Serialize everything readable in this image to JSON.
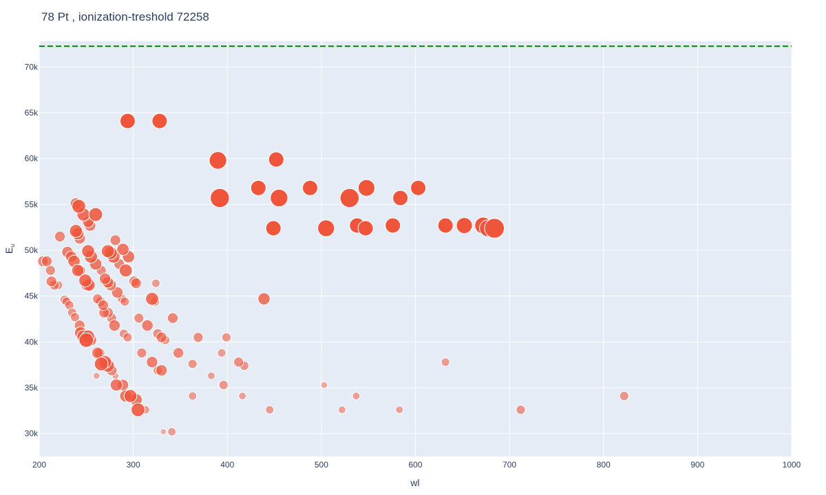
{
  "chart_data": {
    "type": "scatter",
    "title": "78 Pt , ionization-treshold 72258",
    "xlabel": "wl",
    "ylabel": "E",
    "ylabel_sub": "u",
    "xlim": [
      200,
      1000
    ],
    "ylim": [
      27500,
      72800
    ],
    "x_ticks": [
      200,
      300,
      400,
      500,
      600,
      700,
      800,
      900,
      1000
    ],
    "x_tick_labels": [
      "200",
      "300",
      "400",
      "500",
      "600",
      "700",
      "800",
      "900",
      "1000"
    ],
    "y_ticks": [
      30000,
      35000,
      40000,
      45000,
      50000,
      55000,
      60000,
      65000,
      70000
    ],
    "y_tick_labels": [
      "30k",
      "35k",
      "40k",
      "45k",
      "50k",
      "55k",
      "60k",
      "65k",
      "70k"
    ],
    "threshold": {
      "y": 72258,
      "color": "#008000",
      "style": "dashed"
    },
    "grid": true,
    "colors": {
      "background": "#e5ecf6",
      "grid": "#ffffff",
      "marker": "#ef553b",
      "marker_outline": "#ffffff",
      "text": "#2a3f5f"
    },
    "size_encoding": "marker size and opacity vary per point",
    "series": [
      {
        "points": [
          {
            "x": 294,
            "y": 64100,
            "s": 1.0
          },
          {
            "x": 328,
            "y": 64100,
            "s": 1.0
          },
          {
            "x": 390,
            "y": 59800,
            "s": 1.15
          },
          {
            "x": 452,
            "y": 59900,
            "s": 1.0
          },
          {
            "x": 392,
            "y": 55700,
            "s": 1.25
          },
          {
            "x": 433,
            "y": 56800,
            "s": 1.0
          },
          {
            "x": 455,
            "y": 55700,
            "s": 1.15
          },
          {
            "x": 488,
            "y": 56800,
            "s": 1.0
          },
          {
            "x": 530,
            "y": 55700,
            "s": 1.25
          },
          {
            "x": 548,
            "y": 56800,
            "s": 1.1
          },
          {
            "x": 584,
            "y": 55700,
            "s": 1.0
          },
          {
            "x": 603,
            "y": 56800,
            "s": 1.0
          },
          {
            "x": 449,
            "y": 52400,
            "s": 1.0
          },
          {
            "x": 505,
            "y": 52400,
            "s": 1.1
          },
          {
            "x": 538,
            "y": 52700,
            "s": 1.0
          },
          {
            "x": 547,
            "y": 52400,
            "s": 1.0
          },
          {
            "x": 576,
            "y": 52700,
            "s": 1.0
          },
          {
            "x": 632,
            "y": 52700,
            "s": 1.0
          },
          {
            "x": 652,
            "y": 52700,
            "s": 1.05
          },
          {
            "x": 672,
            "y": 52700,
            "s": 1.1
          },
          {
            "x": 677,
            "y": 52400,
            "s": 1.1
          },
          {
            "x": 684,
            "y": 52400,
            "s": 1.3
          },
          {
            "x": 439,
            "y": 44700,
            "s": 0.8
          },
          {
            "x": 632,
            "y": 37800,
            "s": 0.55
          },
          {
            "x": 503,
            "y": 35300,
            "s": 0.45
          },
          {
            "x": 537,
            "y": 34100,
            "s": 0.5
          },
          {
            "x": 522,
            "y": 32600,
            "s": 0.5
          },
          {
            "x": 583,
            "y": 32600,
            "s": 0.5
          },
          {
            "x": 712,
            "y": 32600,
            "s": 0.6
          },
          {
            "x": 822,
            "y": 34100,
            "s": 0.6
          },
          {
            "x": 445,
            "y": 32600,
            "s": 0.55
          },
          {
            "x": 416,
            "y": 34100,
            "s": 0.5
          },
          {
            "x": 396,
            "y": 35300,
            "s": 0.6
          },
          {
            "x": 383,
            "y": 36300,
            "s": 0.5
          },
          {
            "x": 412,
            "y": 37800,
            "s": 0.65
          },
          {
            "x": 418,
            "y": 37400,
            "s": 0.6
          },
          {
            "x": 394,
            "y": 38800,
            "s": 0.55
          },
          {
            "x": 399,
            "y": 40500,
            "s": 0.6
          },
          {
            "x": 369,
            "y": 40500,
            "s": 0.65
          },
          {
            "x": 363,
            "y": 37600,
            "s": 0.6
          },
          {
            "x": 363,
            "y": 34100,
            "s": 0.55
          },
          {
            "x": 348,
            "y": 38800,
            "s": 0.7
          },
          {
            "x": 342,
            "y": 42600,
            "s": 0.7
          },
          {
            "x": 341,
            "y": 30200,
            "s": 0.55
          },
          {
            "x": 332,
            "y": 30200,
            "s": 0.4
          },
          {
            "x": 330,
            "y": 36900,
            "s": 0.75
          },
          {
            "x": 320,
            "y": 37800,
            "s": 0.75
          },
          {
            "x": 326,
            "y": 36900,
            "s": 0.6
          },
          {
            "x": 313,
            "y": 32600,
            "s": 0.55
          },
          {
            "x": 305,
            "y": 32600,
            "s": 0.9
          },
          {
            "x": 303,
            "y": 33700,
            "s": 0.8
          },
          {
            "x": 297,
            "y": 34100,
            "s": 0.85
          },
          {
            "x": 292,
            "y": 34100,
            "s": 0.8
          },
          {
            "x": 289,
            "y": 35300,
            "s": 0.75
          },
          {
            "x": 282,
            "y": 35300,
            "s": 0.8
          },
          {
            "x": 281,
            "y": 36300,
            "s": 0.45
          },
          {
            "x": 277,
            "y": 36900,
            "s": 0.7
          },
          {
            "x": 273,
            "y": 37400,
            "s": 0.85
          },
          {
            "x": 270,
            "y": 37800,
            "s": 0.85
          },
          {
            "x": 266,
            "y": 37600,
            "s": 0.9
          },
          {
            "x": 264,
            "y": 38800,
            "s": 0.7
          },
          {
            "x": 262,
            "y": 38800,
            "s": 0.75
          },
          {
            "x": 309,
            "y": 38800,
            "s": 0.65
          },
          {
            "x": 326,
            "y": 40900,
            "s": 0.65
          },
          {
            "x": 330,
            "y": 40500,
            "s": 0.7
          },
          {
            "x": 334,
            "y": 40200,
            "s": 0.6
          },
          {
            "x": 315,
            "y": 41800,
            "s": 0.75
          },
          {
            "x": 306,
            "y": 42600,
            "s": 0.65
          },
          {
            "x": 280,
            "y": 41800,
            "s": 0.75
          },
          {
            "x": 290,
            "y": 40900,
            "s": 0.6
          },
          {
            "x": 294,
            "y": 40500,
            "s": 0.6
          },
          {
            "x": 277,
            "y": 42600,
            "s": 0.65
          },
          {
            "x": 273,
            "y": 43200,
            "s": 0.7
          },
          {
            "x": 269,
            "y": 43200,
            "s": 0.7
          },
          {
            "x": 268,
            "y": 44000,
            "s": 0.7
          },
          {
            "x": 265,
            "y": 44400,
            "s": 0.65
          },
          {
            "x": 262,
            "y": 44700,
            "s": 0.65
          },
          {
            "x": 320,
            "y": 44700,
            "s": 0.85
          },
          {
            "x": 323,
            "y": 44400,
            "s": 0.6
          },
          {
            "x": 288,
            "y": 44700,
            "s": 0.6
          },
          {
            "x": 291,
            "y": 44400,
            "s": 0.6
          },
          {
            "x": 283,
            "y": 45400,
            "s": 0.75
          },
          {
            "x": 276,
            "y": 46200,
            "s": 0.75
          },
          {
            "x": 273,
            "y": 46500,
            "s": 0.75
          },
          {
            "x": 270,
            "y": 46900,
            "s": 0.75
          },
          {
            "x": 301,
            "y": 46600,
            "s": 0.7
          },
          {
            "x": 303,
            "y": 46400,
            "s": 0.7
          },
          {
            "x": 324,
            "y": 46400,
            "s": 0.55
          },
          {
            "x": 292,
            "y": 47800,
            "s": 0.85
          },
          {
            "x": 266,
            "y": 47800,
            "s": 0.65
          },
          {
            "x": 285,
            "y": 48500,
            "s": 0.7
          },
          {
            "x": 295,
            "y": 49300,
            "s": 0.8
          },
          {
            "x": 279,
            "y": 49300,
            "s": 0.85
          },
          {
            "x": 276,
            "y": 49700,
            "s": 0.85
          },
          {
            "x": 273,
            "y": 49900,
            "s": 0.85
          },
          {
            "x": 289,
            "y": 50100,
            "s": 0.8
          },
          {
            "x": 281,
            "y": 51100,
            "s": 0.7
          },
          {
            "x": 260,
            "y": 48500,
            "s": 0.8
          },
          {
            "x": 255,
            "y": 49300,
            "s": 0.85
          },
          {
            "x": 252,
            "y": 49900,
            "s": 0.85
          },
          {
            "x": 243,
            "y": 51300,
            "s": 0.75
          },
          {
            "x": 241,
            "y": 51800,
            "s": 0.8
          },
          {
            "x": 239,
            "y": 52100,
            "s": 0.85
          },
          {
            "x": 254,
            "y": 52700,
            "s": 0.75
          },
          {
            "x": 252,
            "y": 53100,
            "s": 0.75
          },
          {
            "x": 247,
            "y": 53900,
            "s": 0.85
          },
          {
            "x": 260,
            "y": 53900,
            "s": 0.9
          },
          {
            "x": 242,
            "y": 54800,
            "s": 0.9
          },
          {
            "x": 239,
            "y": 55100,
            "s": 0.75
          },
          {
            "x": 222,
            "y": 51500,
            "s": 0.7
          },
          {
            "x": 230,
            "y": 49800,
            "s": 0.75
          },
          {
            "x": 234,
            "y": 49300,
            "s": 0.75
          },
          {
            "x": 237,
            "y": 48800,
            "s": 0.8
          },
          {
            "x": 243,
            "y": 47800,
            "s": 0.75
          },
          {
            "x": 241,
            "y": 47800,
            "s": 0.8
          },
          {
            "x": 249,
            "y": 46700,
            "s": 0.85
          },
          {
            "x": 251,
            "y": 46200,
            "s": 0.8
          },
          {
            "x": 253,
            "y": 46200,
            "s": 0.8
          },
          {
            "x": 213,
            "y": 46600,
            "s": 0.7
          },
          {
            "x": 216,
            "y": 46200,
            "s": 0.65
          },
          {
            "x": 220,
            "y": 46200,
            "s": 0.6
          },
          {
            "x": 212,
            "y": 47800,
            "s": 0.65
          },
          {
            "x": 204,
            "y": 48800,
            "s": 0.7
          },
          {
            "x": 208,
            "y": 48800,
            "s": 0.7
          },
          {
            "x": 227,
            "y": 44600,
            "s": 0.6
          },
          {
            "x": 229,
            "y": 44400,
            "s": 0.6
          },
          {
            "x": 232,
            "y": 44000,
            "s": 0.6
          },
          {
            "x": 235,
            "y": 43200,
            "s": 0.6
          },
          {
            "x": 238,
            "y": 42700,
            "s": 0.6
          },
          {
            "x": 243,
            "y": 41800,
            "s": 0.7
          },
          {
            "x": 244,
            "y": 41000,
            "s": 0.8
          },
          {
            "x": 247,
            "y": 40600,
            "s": 0.85
          },
          {
            "x": 250,
            "y": 40200,
            "s": 0.95
          },
          {
            "x": 252,
            "y": 40600,
            "s": 0.85
          },
          {
            "x": 255,
            "y": 40200,
            "s": 0.75
          },
          {
            "x": 261,
            "y": 36300,
            "s": 0.45
          }
        ]
      }
    ]
  }
}
